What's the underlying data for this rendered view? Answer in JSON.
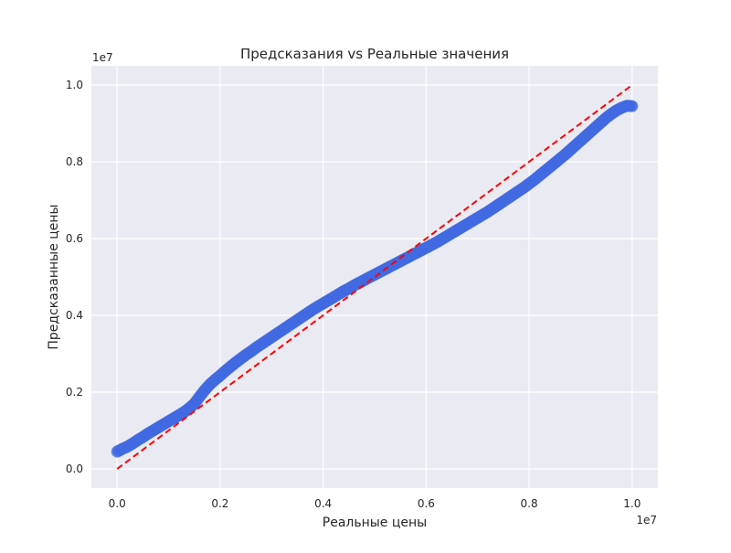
{
  "chart_data": {
    "type": "scatter",
    "title": "Предсказания vs Реальные значения",
    "xlabel": "Реальные цены",
    "ylabel": "Предсказанные цены",
    "x_offset_label": "1e7",
    "y_offset_label": "1e7",
    "xlim": [
      -0.05,
      1.05
    ],
    "ylim": [
      -0.05,
      1.05
    ],
    "scale_note": "values shown in units of 1e7",
    "xticks": [
      0.0,
      0.2,
      0.4,
      0.6,
      0.8,
      1.0
    ],
    "xtick_labels": [
      "0.0",
      "0.2",
      "0.4",
      "0.6",
      "0.8",
      "1.0"
    ],
    "yticks": [
      0.0,
      0.2,
      0.4,
      0.6,
      0.8,
      1.0
    ],
    "ytick_labels": [
      "0.0",
      "0.2",
      "0.4",
      "0.6",
      "0.8",
      "1.0"
    ],
    "grid": true,
    "background": "#eaeaf2",
    "series": [
      {
        "kind": "scatter",
        "color": "#4169e1",
        "x": [
          0.0,
          0.01,
          0.02,
          0.03,
          0.04,
          0.05,
          0.06,
          0.07,
          0.08,
          0.09,
          0.1,
          0.11,
          0.12,
          0.13,
          0.14,
          0.15,
          0.16,
          0.17,
          0.18,
          0.19,
          0.2,
          0.21,
          0.22,
          0.23,
          0.24,
          0.25,
          0.26,
          0.27,
          0.28,
          0.29,
          0.3,
          0.31,
          0.32,
          0.33,
          0.34,
          0.35,
          0.36,
          0.37,
          0.38,
          0.39,
          0.4,
          0.41,
          0.42,
          0.43,
          0.44,
          0.45,
          0.46,
          0.47,
          0.48,
          0.49,
          0.5,
          0.51,
          0.52,
          0.53,
          0.54,
          0.55,
          0.56,
          0.57,
          0.58,
          0.59,
          0.6,
          0.61,
          0.62,
          0.63,
          0.64,
          0.65,
          0.66,
          0.67,
          0.68,
          0.69,
          0.7,
          0.71,
          0.72,
          0.73,
          0.74,
          0.75,
          0.76,
          0.77,
          0.78,
          0.79,
          0.8,
          0.81,
          0.82,
          0.83,
          0.84,
          0.85,
          0.86,
          0.87,
          0.88,
          0.89,
          0.9,
          0.91,
          0.92,
          0.93,
          0.94,
          0.95,
          0.96,
          0.97,
          0.98,
          0.99,
          1.0
        ],
        "y": [
          0.045,
          0.052,
          0.058,
          0.066,
          0.075,
          0.083,
          0.092,
          0.1,
          0.108,
          0.116,
          0.124,
          0.132,
          0.14,
          0.148,
          0.158,
          0.17,
          0.188,
          0.205,
          0.22,
          0.232,
          0.243,
          0.255,
          0.266,
          0.277,
          0.287,
          0.297,
          0.306,
          0.316,
          0.325,
          0.334,
          0.343,
          0.352,
          0.361,
          0.37,
          0.379,
          0.388,
          0.397,
          0.406,
          0.415,
          0.423,
          0.431,
          0.439,
          0.447,
          0.455,
          0.463,
          0.47,
          0.478,
          0.485,
          0.492,
          0.499,
          0.506,
          0.513,
          0.52,
          0.527,
          0.534,
          0.541,
          0.548,
          0.555,
          0.562,
          0.569,
          0.576,
          0.583,
          0.59,
          0.598,
          0.606,
          0.614,
          0.622,
          0.63,
          0.638,
          0.646,
          0.654,
          0.662,
          0.67,
          0.679,
          0.688,
          0.697,
          0.706,
          0.715,
          0.724,
          0.733,
          0.743,
          0.753,
          0.764,
          0.775,
          0.786,
          0.797,
          0.808,
          0.819,
          0.831,
          0.843,
          0.855,
          0.867,
          0.879,
          0.891,
          0.903,
          0.915,
          0.925,
          0.934,
          0.941,
          0.946,
          0.945
        ]
      },
      {
        "kind": "reference-line",
        "color": "#ff0000",
        "style": "dashed",
        "x": [
          0.0,
          1.0
        ],
        "y": [
          0.0,
          1.0
        ]
      }
    ]
  }
}
